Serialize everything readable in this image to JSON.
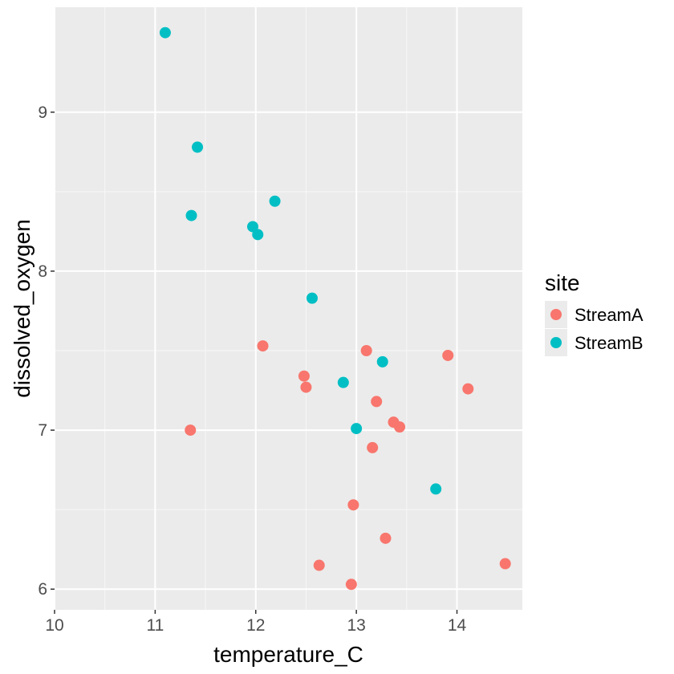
{
  "chart_data": {
    "type": "scatter",
    "xlabel": "temperature_C",
    "ylabel": "dissolved_oxygen",
    "xlim": [
      10,
      14.65
    ],
    "ylim": [
      5.87,
      9.66
    ],
    "x_ticks": [
      10,
      11,
      12,
      13,
      14
    ],
    "x_tick_labels": [
      "10",
      "11",
      "12",
      "13",
      "14"
    ],
    "y_ticks": [
      6,
      7,
      8,
      9
    ],
    "y_tick_labels": [
      "6",
      "7",
      "8",
      "9"
    ],
    "grid": true,
    "legend": {
      "title": "site",
      "position": "right",
      "entries": [
        "StreamA",
        "StreamB"
      ]
    },
    "series": [
      {
        "name": "StreamA",
        "color": "#F8766D",
        "points": [
          {
            "x": 11.35,
            "y": 7.0
          },
          {
            "x": 12.07,
            "y": 7.53
          },
          {
            "x": 12.48,
            "y": 7.34
          },
          {
            "x": 12.5,
            "y": 7.27
          },
          {
            "x": 12.63,
            "y": 6.15
          },
          {
            "x": 12.95,
            "y": 6.03
          },
          {
            "x": 12.97,
            "y": 6.53
          },
          {
            "x": 13.1,
            "y": 7.5
          },
          {
            "x": 13.16,
            "y": 6.89
          },
          {
            "x": 13.2,
            "y": 7.18
          },
          {
            "x": 13.29,
            "y": 6.32
          },
          {
            "x": 13.37,
            "y": 7.05
          },
          {
            "x": 13.43,
            "y": 7.02
          },
          {
            "x": 13.91,
            "y": 7.47
          },
          {
            "x": 14.11,
            "y": 7.26
          },
          {
            "x": 14.48,
            "y": 6.16
          }
        ]
      },
      {
        "name": "StreamB",
        "color": "#00BFC4",
        "points": [
          {
            "x": 11.1,
            "y": 9.5
          },
          {
            "x": 11.36,
            "y": 8.35
          },
          {
            "x": 11.42,
            "y": 8.78
          },
          {
            "x": 11.97,
            "y": 8.28
          },
          {
            "x": 12.02,
            "y": 8.23
          },
          {
            "x": 12.19,
            "y": 8.44
          },
          {
            "x": 12.56,
            "y": 7.83
          },
          {
            "x": 12.87,
            "y": 7.3
          },
          {
            "x": 13.0,
            "y": 7.01
          },
          {
            "x": 13.26,
            "y": 7.43
          },
          {
            "x": 13.79,
            "y": 6.63
          }
        ]
      }
    ]
  }
}
